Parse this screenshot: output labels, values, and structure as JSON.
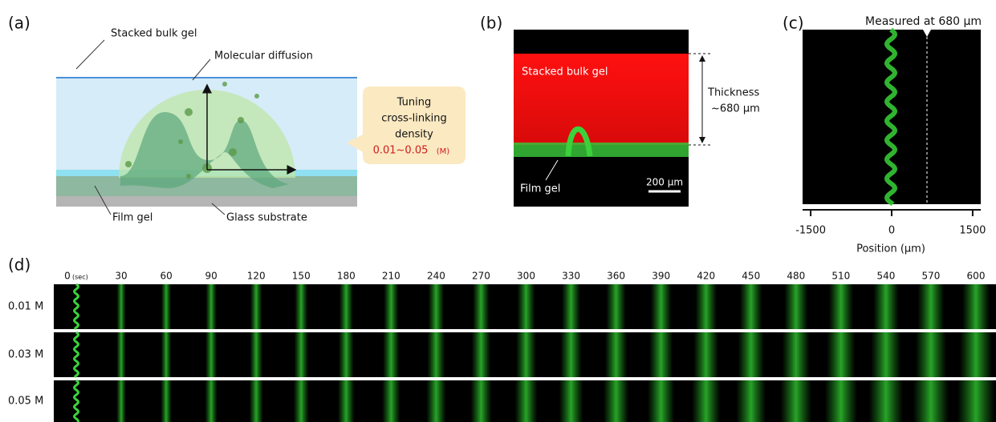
{
  "panels": {
    "a": {
      "label": "(a)",
      "stacked_bulk_gel": "Stacked bulk gel",
      "molecular_diffusion": "Molecular diffusion",
      "callout": {
        "lines": [
          "Tuning",
          "cross-linking",
          "density"
        ],
        "range": "0.01~0.05",
        "unit": "(M)"
      },
      "film_gel": "Film gel",
      "glass_substrate": "Glass substrate"
    },
    "b": {
      "label": "(b)",
      "stacked_bulk_gel": "Stacked bulk gel",
      "film_gel": "Film gel",
      "thickness": "Thickness",
      "thickness_value": "~680 μm",
      "scale_bar": "200 μm"
    },
    "c": {
      "label": "(c)",
      "annotation": "Measured at 680 μm",
      "xlim": [
        -1650,
        1650
      ],
      "xticks": [
        -1500,
        0,
        1500
      ],
      "xlabel": "Position (μm)"
    },
    "d": {
      "label": "(d)",
      "time_unit": "(sec)",
      "times": [
        0,
        30,
        60,
        90,
        120,
        150,
        180,
        210,
        240,
        270,
        300,
        330,
        360,
        390,
        420,
        450,
        480,
        510,
        540,
        570,
        600
      ],
      "rows": [
        "0.01 M",
        "0.03 M",
        "0.05 M"
      ]
    }
  }
}
